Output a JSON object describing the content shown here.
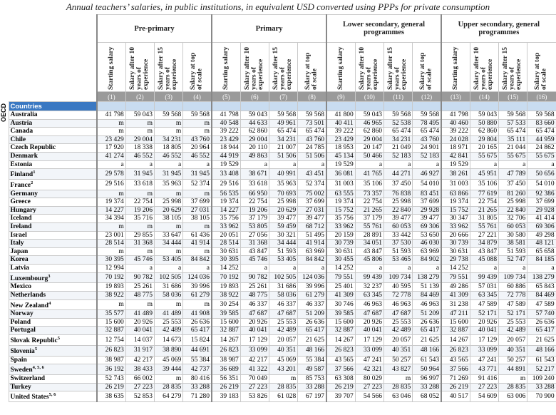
{
  "title": "Annual teachers’ salaries, in public institutions, in equivalent USD converted using PPPs for private consumption",
  "groups": [
    "Pre-primary",
    "Primary",
    "Lower secondary, general programmes",
    "Upper secondary, general programmes"
  ],
  "columns": [
    "Starting salary",
    "Salary after 10 years of experience",
    "Salary after 15 years of experience",
    "Salary at top of scale"
  ],
  "column_numbers": [
    "(1)",
    "(2)",
    "(3)",
    "(4)",
    "(5)",
    "(6)",
    "(7)",
    "(8)",
    "(9)",
    "(10)",
    "(11)",
    "(12)",
    "(13)",
    "(14)",
    "(15)",
    "(16)"
  ],
  "side_label": "OECD",
  "section": "Countries",
  "rows": [
    {
      "country": "Australia",
      "values": [
        "41 798",
        "59 043",
        "59 568",
        "59 568",
        "41 798",
        "59 043",
        "59 568",
        "59 568",
        "41 800",
        "59 043",
        "59 568",
        "59 568",
        "41 798",
        "59 043",
        "59 568",
        "59 568"
      ]
    },
    {
      "country": "Austria",
      "values": [
        "m",
        "m",
        "m",
        "m",
        "40 548",
        "44 633",
        "49 961",
        "73 501",
        "40 411",
        "46 965",
        "52 538",
        "78 495",
        "40 460",
        "50 880",
        "57 533",
        "83 660"
      ]
    },
    {
      "country": "Canada",
      "values": [
        "m",
        "m",
        "m",
        "m",
        "39 222",
        "62 860",
        "65 474",
        "65 474",
        "39 222",
        "62 860",
        "65 474",
        "65 474",
        "39 222",
        "62 860",
        "65 474",
        "65 474"
      ]
    },
    {
      "country": "Chile",
      "values": [
        "23 429",
        "29 004",
        "34 231",
        "43 760",
        "23 429",
        "29 004",
        "34 231",
        "43 760",
        "23 429",
        "29 004",
        "34 231",
        "43 760",
        "24 028",
        "29 804",
        "35 111",
        "44 959"
      ]
    },
    {
      "country": "Czech Republic",
      "values": [
        "17 920",
        "18 338",
        "18 805",
        "20 964",
        "18 944",
        "20 110",
        "21 007",
        "24 785",
        "18 953",
        "20 147",
        "21 049",
        "24 901",
        "18 971",
        "20 165",
        "21 044",
        "24 862"
      ]
    },
    {
      "country": "Denmark",
      "values": [
        "41 274",
        "46 552",
        "46 552",
        "46 552",
        "44 919",
        "49 863",
        "51 506",
        "51 506",
        "45 134",
        "50 466",
        "52 183",
        "52 183",
        "42 841",
        "55 675",
        "55 675",
        "55 675"
      ]
    },
    {
      "country": "Estonia",
      "values": [
        "a",
        "a",
        "a",
        "a",
        "19 529",
        "a",
        "a",
        "a",
        "19 529",
        "a",
        "a",
        "a",
        "19 529",
        "a",
        "a",
        "a"
      ]
    },
    {
      "country": "Finland",
      "note": "1",
      "values": [
        "29 578",
        "31 945",
        "31 945",
        "31 945",
        "33 408",
        "38 671",
        "40 991",
        "43 451",
        "36 081",
        "41 765",
        "44 271",
        "46 927",
        "38 261",
        "45 951",
        "47 789",
        "50 656"
      ]
    },
    {
      "country": "France",
      "note": "2",
      "values": [
        "29 516",
        "33 618",
        "35 963",
        "52 374",
        "29 516",
        "33 618",
        "35 963",
        "52 374",
        "31 003",
        "35 106",
        "37 450",
        "54 010",
        "31 003",
        "35 106",
        "37 450",
        "54 010"
      ]
    },
    {
      "country": "Germany",
      "values": [
        "m",
        "m",
        "m",
        "m",
        "56 535",
        "66 950",
        "70 693",
        "75 002",
        "63 555",
        "73 357",
        "76 838",
        "83 451",
        "63 866",
        "77 619",
        "81 260",
        "92 386"
      ]
    },
    {
      "country": "Greece",
      "values": [
        "19 374",
        "22 754",
        "25 998",
        "37 699",
        "19 374",
        "22 754",
        "25 998",
        "37 699",
        "19 374",
        "22 754",
        "25 998",
        "37 699",
        "19 374",
        "22 754",
        "25 998",
        "37 699"
      ]
    },
    {
      "country": "Hungary",
      "values": [
        "14 227",
        "19 206",
        "20 629",
        "27 031",
        "14 227",
        "19 206",
        "20 629",
        "27 031",
        "15 752",
        "21 265",
        "22 840",
        "29 928",
        "15 752",
        "21 265",
        "22 840",
        "29 928"
      ]
    },
    {
      "country": "Iceland",
      "values": [
        "34 394",
        "35 716",
        "38 105",
        "38 105",
        "35 756",
        "37 179",
        "39 477",
        "39 477",
        "35 756",
        "37 179",
        "39 477",
        "39 477",
        "30 347",
        "31 805",
        "32 706",
        "41 414"
      ]
    },
    {
      "country": "Ireland",
      "values": [
        "m",
        "m",
        "m",
        "m",
        "33 962",
        "53 805",
        "59 459",
        "68 712",
        "33 962",
        "55 761",
        "60 053",
        "69 306",
        "33 962",
        "55 761",
        "60 053",
        "69 306"
      ]
    },
    {
      "country": "Israel",
      "values": [
        "23 001",
        "29 855",
        "33 647",
        "61 436",
        "20 051",
        "27 056",
        "30 321",
        "51 495",
        "20 159",
        "28 891",
        "33 442",
        "53 650",
        "20 666",
        "27 221",
        "30 580",
        "49 298"
      ]
    },
    {
      "country": "Italy",
      "values": [
        "28 514",
        "31 368",
        "34 444",
        "41 914",
        "28 514",
        "31 368",
        "34 444",
        "41 914",
        "30 739",
        "34 051",
        "37 530",
        "46 030",
        "30 739",
        "34 879",
        "38 581",
        "48 121"
      ]
    },
    {
      "country": "Japan",
      "values": [
        "m",
        "m",
        "m",
        "m",
        "30 631",
        "43 847",
        "51 593",
        "63 969",
        "30 631",
        "43 847",
        "51 593",
        "63 969",
        "30 631",
        "43 847",
        "51 593",
        "65 658"
      ]
    },
    {
      "country": "Korea",
      "values": [
        "30 395",
        "45 746",
        "53 405",
        "84 842",
        "30 395",
        "45 746",
        "53 405",
        "84 842",
        "30 455",
        "45 806",
        "53 465",
        "84 902",
        "29 738",
        "45 088",
        "52 747",
        "84 185"
      ]
    },
    {
      "country": "Latvia",
      "values": [
        "12 994",
        "a",
        "a",
        "a",
        "14 252",
        "a",
        "a",
        "a",
        "14 252",
        "a",
        "a",
        "a",
        "14 252",
        "a",
        "a",
        "a"
      ]
    },
    {
      "country": "Luxembourg",
      "note": "3",
      "values": [
        "70 192",
        "90 782",
        "102 505",
        "124 036",
        "70 192",
        "90 782",
        "102 505",
        "124 036",
        "79 551",
        "99 439",
        "109 734",
        "138 279",
        "79 551",
        "99 439",
        "109 734",
        "138 279"
      ]
    },
    {
      "country": "Mexico",
      "values": [
        "19 893",
        "25 261",
        "31 686",
        "39 996",
        "19 893",
        "25 261",
        "31 686",
        "39 996",
        "25 401",
        "32 237",
        "40 595",
        "51 139",
        "49 286",
        "57 031",
        "60 886",
        "65 843"
      ]
    },
    {
      "country": "Netherlands",
      "values": [
        "38 922",
        "48 775",
        "58 036",
        "61 279",
        "38 922",
        "48 775",
        "58 036",
        "61 279",
        "41 309",
        "63 345",
        "72 778",
        "84 469",
        "41 309",
        "63 345",
        "72 778",
        "84 469"
      ]
    },
    {
      "country": "New Zealand",
      "note": "4",
      "values": [
        "m",
        "m",
        "m",
        "m",
        "30 254",
        "46 337",
        "46 337",
        "46 337",
        "30 746",
        "46 963",
        "46 963",
        "46 963",
        "31 238",
        "47 589",
        "47 589",
        "47 589"
      ]
    },
    {
      "country": "Norway",
      "values": [
        "35 577",
        "41 489",
        "41 489",
        "41 908",
        "39 585",
        "47 687",
        "47 687",
        "51 209",
        "39 585",
        "47 687",
        "47 687",
        "51 209",
        "47 211",
        "52 171",
        "52 171",
        "57 740"
      ]
    },
    {
      "country": "Poland",
      "values": [
        "15 600",
        "20 926",
        "25 553",
        "26 636",
        "15 600",
        "20 926",
        "25 553",
        "26 636",
        "15 600",
        "20 926",
        "25 553",
        "26 636",
        "15 600",
        "20 926",
        "25 553",
        "26 636"
      ]
    },
    {
      "country": "Portugal",
      "values": [
        "32 887",
        "40 041",
        "42 489",
        "65 417",
        "32 887",
        "40 041",
        "42 489",
        "65 417",
        "32 887",
        "40 041",
        "42 489",
        "65 417",
        "32 887",
        "40 041",
        "42 489",
        "65 417"
      ]
    },
    {
      "country": "Slovak Republic",
      "note": "5",
      "values": [
        "12 754",
        "14 037",
        "14 673",
        "15 824",
        "14 267",
        "17 129",
        "20 057",
        "21 625",
        "14 267",
        "17 129",
        "20 057",
        "21 625",
        "14 267",
        "17 129",
        "20 057",
        "21 625"
      ]
    },
    {
      "country": "Slovenia",
      "note": "5",
      "values": [
        "26 823",
        "31 917",
        "38 890",
        "44 691",
        "26 823",
        "33 099",
        "40 351",
        "48 166",
        "26 823",
        "33 099",
        "40 351",
        "48 166",
        "26 823",
        "33 099",
        "40 351",
        "48 166"
      ]
    },
    {
      "country": "Spain",
      "values": [
        "38 987",
        "42 217",
        "45 069",
        "55 384",
        "38 987",
        "42 217",
        "45 069",
        "55 384",
        "43 565",
        "47 241",
        "50 257",
        "61 543",
        "43 565",
        "47 241",
        "50 257",
        "61 543"
      ]
    },
    {
      "country": "Sweden",
      "note": "4, 5, 6",
      "values": [
        "36 192",
        "38 433",
        "39 444",
        "42 737",
        "36 689",
        "41 322",
        "43 201",
        "49 587",
        "37 566",
        "42 321",
        "43 827",
        "50 964",
        "37 566",
        "43 771",
        "44 891",
        "52 217"
      ]
    },
    {
      "country": "Switzerland",
      "values": [
        "52 743",
        "66 002",
        "m",
        "80 416",
        "56 351",
        "70 049",
        "m",
        "85 753",
        "63 308",
        "80 029",
        "m",
        "96 997",
        "71 269",
        "91 416",
        "m",
        "109 240"
      ]
    },
    {
      "country": "Turkey",
      "values": [
        "26 219",
        "27 223",
        "28 835",
        "33 288",
        "26 219",
        "27 223",
        "28 835",
        "33 288",
        "26 219",
        "27 223",
        "28 835",
        "33 288",
        "26 219",
        "27 223",
        "28 835",
        "33 288"
      ]
    },
    {
      "country": "United States",
      "note": "5, 6",
      "values": [
        "38 635",
        "52 853",
        "64 279",
        "71 280",
        "39 183",
        "53 826",
        "61 028",
        "67 197",
        "39 707",
        "54 566",
        "63 046",
        "68 052",
        "40 517",
        "54 609",
        "63 006",
        "70 900"
      ]
    }
  ]
}
